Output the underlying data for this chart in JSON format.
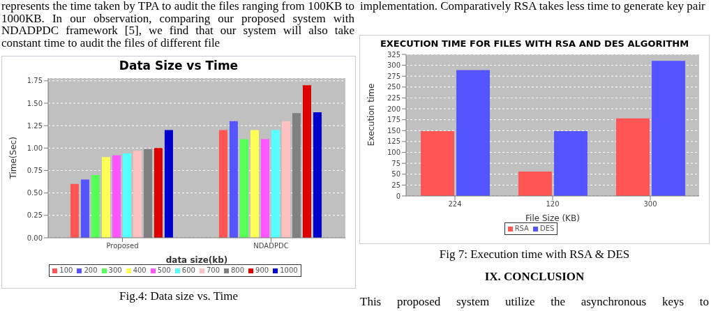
{
  "chart_data": [
    {
      "type": "bar",
      "title": "Data Size vs Time",
      "xlabel": "data size(kb)",
      "ylabel": "Time(Sec)",
      "categories": [
        "Proposed",
        "NDADPDC"
      ],
      "series": [
        {
          "name": "100",
          "color": "#ff5555",
          "values": [
            0.6,
            1.2
          ]
        },
        {
          "name": "200",
          "color": "#5555ff",
          "values": [
            0.65,
            1.3
          ]
        },
        {
          "name": "300",
          "color": "#55ff55",
          "values": [
            0.7,
            1.1
          ]
        },
        {
          "name": "400",
          "color": "#ffff55",
          "values": [
            0.9,
            1.2
          ]
        },
        {
          "name": "500",
          "color": "#ff55ff",
          "values": [
            0.92,
            1.1
          ]
        },
        {
          "name": "600",
          "color": "#55ffff",
          "values": [
            0.94,
            1.2
          ]
        },
        {
          "name": "700",
          "color": "#ffc0c0",
          "values": [
            0.97,
            1.3
          ]
        },
        {
          "name": "800",
          "color": "#808080",
          "values": [
            0.99,
            1.39
          ]
        },
        {
          "name": "900",
          "color": "#dd0000",
          "values": [
            1.0,
            1.7
          ]
        },
        {
          "name": "1000",
          "color": "#0000cc",
          "values": [
            1.2,
            1.4
          ]
        }
      ],
      "ylim": [
        0,
        1.78
      ],
      "yticks": [
        {
          "value": 0,
          "label": "0.00"
        },
        {
          "value": 0.25,
          "label": "0.25"
        },
        {
          "value": 0.5,
          "label": "0.50"
        },
        {
          "value": 0.75,
          "label": "0.75"
        },
        {
          "value": 1,
          "label": "1.00"
        },
        {
          "value": 1.25,
          "label": "1.25"
        },
        {
          "value": 1.5,
          "label": "1.50"
        },
        {
          "value": 1.75,
          "label": "1.75"
        }
      ],
      "grid": "y",
      "legend": "bottom",
      "annotations": [
        "represents the time taken by TPA to audit the files ranging from 100KB to 1000KB. In our observation, comparing our proposed system with NDADPDC framework [5], we find that our system will also take constant time to audit the files of different file",
        "Fig.4: Data size vs. Time"
      ]
    },
    {
      "type": "bar",
      "title": "EXECUTION TIME FOR FILES WITH RSA AND DES ALGORITHM",
      "xlabel": "File Size (KB)",
      "ylabel": "Execution time",
      "categories": [
        "224",
        "120",
        "300"
      ],
      "series": [
        {
          "name": "RSA",
          "color": "#ff5555",
          "values": [
            149,
            56,
            178
          ]
        },
        {
          "name": "DES",
          "color": "#5555ff",
          "values": [
            289,
            149,
            310
          ]
        }
      ],
      "ylim": [
        0,
        325
      ],
      "yticks": [
        0,
        25,
        50,
        75,
        100,
        125,
        150,
        175,
        200,
        225,
        250,
        275,
        300,
        325
      ],
      "grid": "y",
      "legend": "bottom",
      "annotations": [
        "implementation. Comparatively RSA takes less time to generate key pair",
        "Fig 7: Execution time with RSA & DES",
        "IX. CONCLUSION",
        "This proposed system utilize the asynchronous keys to"
      ]
    }
  ]
}
